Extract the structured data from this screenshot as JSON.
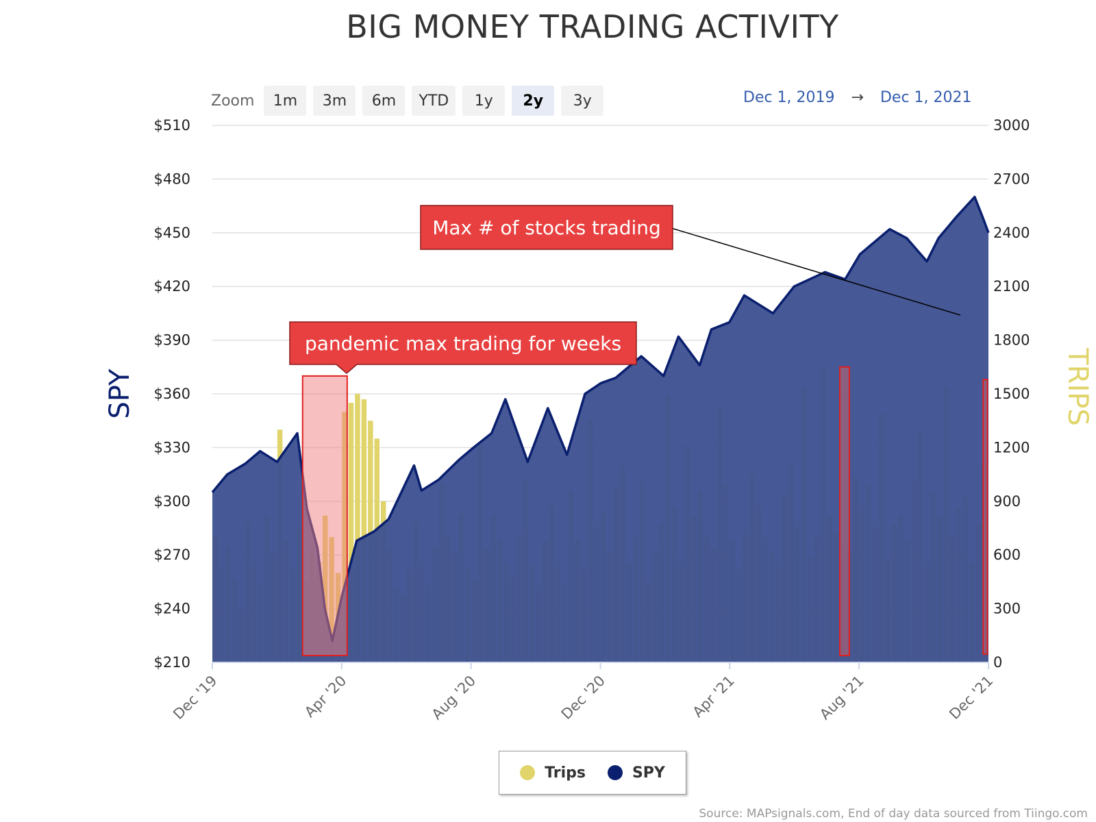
{
  "title": "BIG MONEY TRADING ACTIVITY",
  "zoom": {
    "label": "Zoom",
    "buttons": [
      "1m",
      "3m",
      "6m",
      "YTD",
      "1y",
      "2y",
      "3y"
    ],
    "active": "2y"
  },
  "range": {
    "from": "Dec 1, 2019",
    "arrow": "→",
    "to": "Dec 1, 2021"
  },
  "legend": {
    "items": [
      {
        "name": "Trips",
        "color": "#e0d46a"
      },
      {
        "name": "SPY",
        "color": "#0a1f6e"
      }
    ]
  },
  "source": "Source: MAPsignals.com, End of day data sourced from Tiingo.com",
  "colors": {
    "spy_line": "#0a1f6e",
    "spy_fill": "#3c5090",
    "trips": "#e0d46a",
    "annotation": "#e84040"
  },
  "chart_data": {
    "type": "area",
    "title": "BIG MONEY TRADING ACTIVITY",
    "x_range": [
      "2019-12-01",
      "2021-12-01"
    ],
    "x_ticks": [
      "Dec '19",
      "Apr '20",
      "Aug '20",
      "Dec '20",
      "Apr '21",
      "Aug '21",
      "Dec '21"
    ],
    "y_left": {
      "label": "SPY",
      "ticks": [
        "$510",
        "$480",
        "$450",
        "$420",
        "$390",
        "$360",
        "$330",
        "$300",
        "$270",
        "$240",
        "$210"
      ],
      "range": [
        210,
        510
      ]
    },
    "y_right": {
      "label": "TRIPS",
      "ticks": [
        "3000",
        "2700",
        "2400",
        "2100",
        "1800",
        "1500",
        "1200",
        "900",
        "600",
        "300",
        "0"
      ],
      "range": [
        0,
        3000
      ]
    },
    "grid": true,
    "legend_placement": "bottom-center",
    "series": [
      {
        "name": "SPY",
        "kind": "area",
        "points": [
          [
            "2019-12-01",
            305
          ],
          [
            "2019-12-15",
            315
          ],
          [
            "2020-01-01",
            321
          ],
          [
            "2020-01-15",
            328
          ],
          [
            "2020-01-31",
            322
          ],
          [
            "2020-02-19",
            338
          ],
          [
            "2020-02-28",
            296
          ],
          [
            "2020-03-09",
            274
          ],
          [
            "2020-03-16",
            240
          ],
          [
            "2020-03-23",
            222
          ],
          [
            "2020-04-01",
            247
          ],
          [
            "2020-04-15",
            278
          ],
          [
            "2020-05-01",
            283
          ],
          [
            "2020-05-15",
            290
          ],
          [
            "2020-06-08",
            320
          ],
          [
            "2020-06-15",
            306
          ],
          [
            "2020-07-01",
            312
          ],
          [
            "2020-07-20",
            323
          ],
          [
            "2020-08-03",
            330
          ],
          [
            "2020-08-20",
            338
          ],
          [
            "2020-09-02",
            357
          ],
          [
            "2020-09-23",
            322
          ],
          [
            "2020-10-12",
            352
          ],
          [
            "2020-10-30",
            326
          ],
          [
            "2020-11-16",
            360
          ],
          [
            "2020-12-01",
            366
          ],
          [
            "2020-12-15",
            369
          ],
          [
            "2021-01-08",
            381
          ],
          [
            "2021-01-29",
            370
          ],
          [
            "2021-02-12",
            392
          ],
          [
            "2021-03-04",
            376
          ],
          [
            "2021-03-15",
            396
          ],
          [
            "2021-04-01",
            400
          ],
          [
            "2021-04-15",
            415
          ],
          [
            "2021-05-12",
            405
          ],
          [
            "2021-06-01",
            420
          ],
          [
            "2021-06-30",
            428
          ],
          [
            "2021-07-19",
            424
          ],
          [
            "2021-08-02",
            438
          ],
          [
            "2021-08-30",
            452
          ],
          [
            "2021-09-15",
            447
          ],
          [
            "2021-10-04",
            434
          ],
          [
            "2021-10-15",
            447
          ],
          [
            "2021-11-01",
            459
          ],
          [
            "2021-11-18",
            470
          ],
          [
            "2021-11-26",
            458
          ],
          [
            "2021-12-01",
            450
          ]
        ]
      },
      {
        "name": "Trips",
        "kind": "column",
        "values_daily_sample": [
          700,
          520,
          650,
          470,
          300,
          780,
          560,
          430,
          820,
          610,
          1300,
          680,
          520,
          750,
          460,
          640,
          560,
          820,
          700,
          500,
          1400,
          1450,
          1500,
          1470,
          1350,
          1250,
          900,
          650,
          420,
          380,
          520,
          780,
          560,
          430,
          650,
          1000,
          720,
          610,
          830,
          520,
          470,
          1210,
          640,
          820,
          690,
          560,
          480,
          720,
          1020,
          540,
          430,
          680,
          880,
          560,
          430,
          960,
          690,
          520,
          1360,
          760,
          840,
          620,
          980,
          1100,
          560,
          700,
          1010,
          450,
          620,
          780,
          1500,
          870,
          560,
          1210,
          820,
          960,
          700,
          640,
          1430,
          990,
          680,
          520,
          740,
          1050,
          880,
          700,
          620,
          560,
          930,
          1120,
          760,
          1530,
          590,
          700,
          1660,
          820,
          720,
          560,
          640,
          1040,
          880,
          990,
          760,
          1390,
          600,
          770,
          820,
          680,
          1010,
          1280,
          560,
          950,
          820,
          1540,
          700,
          860,
          930,
          560,
          780,
          1120
        ]
      }
    ],
    "annotations": [
      {
        "text": "pandemic max trading for weeks",
        "x_start": "2020-02-24",
        "x_end": "2020-04-06"
      },
      {
        "text": "Max # of stocks trading",
        "x_start": "2021-07-14",
        "x_end": "2021-07-23"
      },
      {
        "x_start": "2021-11-26",
        "x_end": "2021-11-30"
      }
    ]
  }
}
